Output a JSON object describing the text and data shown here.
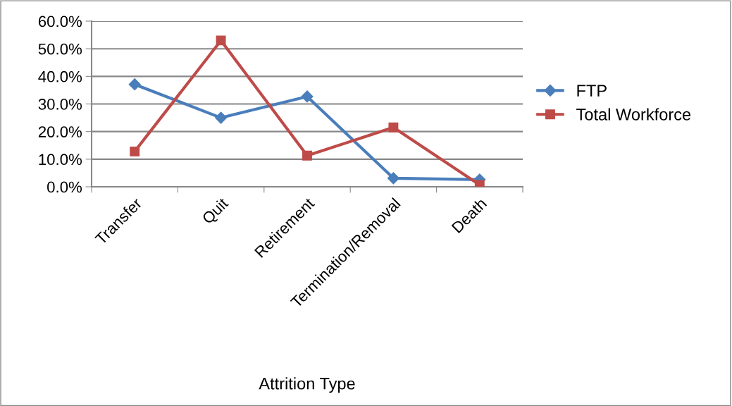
{
  "chart_data": {
    "type": "line",
    "xlabel": "Attrition Type",
    "categories": [
      "Transfer",
      "Quit",
      "Retirement",
      "Termination/Removal",
      "Death"
    ],
    "series": [
      {
        "name": "FTP",
        "color": "#4a7ebb",
        "marker": "diamond",
        "values": [
          37.1,
          25.0,
          32.7,
          3.1,
          2.6
        ]
      },
      {
        "name": "Total Workforce",
        "color": "#be4b48",
        "marker": "square",
        "values": [
          12.8,
          53.0,
          11.3,
          21.5,
          0.7
        ]
      }
    ],
    "ylim": [
      0,
      60
    ],
    "yticks": [
      {
        "value": 0,
        "label": "0.0%"
      },
      {
        "value": 10,
        "label": "10.0%"
      },
      {
        "value": 20,
        "label": "20.0%"
      },
      {
        "value": 30,
        "label": "30.0%"
      },
      {
        "value": 40,
        "label": "40.0%"
      },
      {
        "value": 50,
        "label": "50.0%"
      },
      {
        "value": 60,
        "label": "60.0%"
      }
    ],
    "grid": "y",
    "legend": "right",
    "line_style": "solid"
  }
}
